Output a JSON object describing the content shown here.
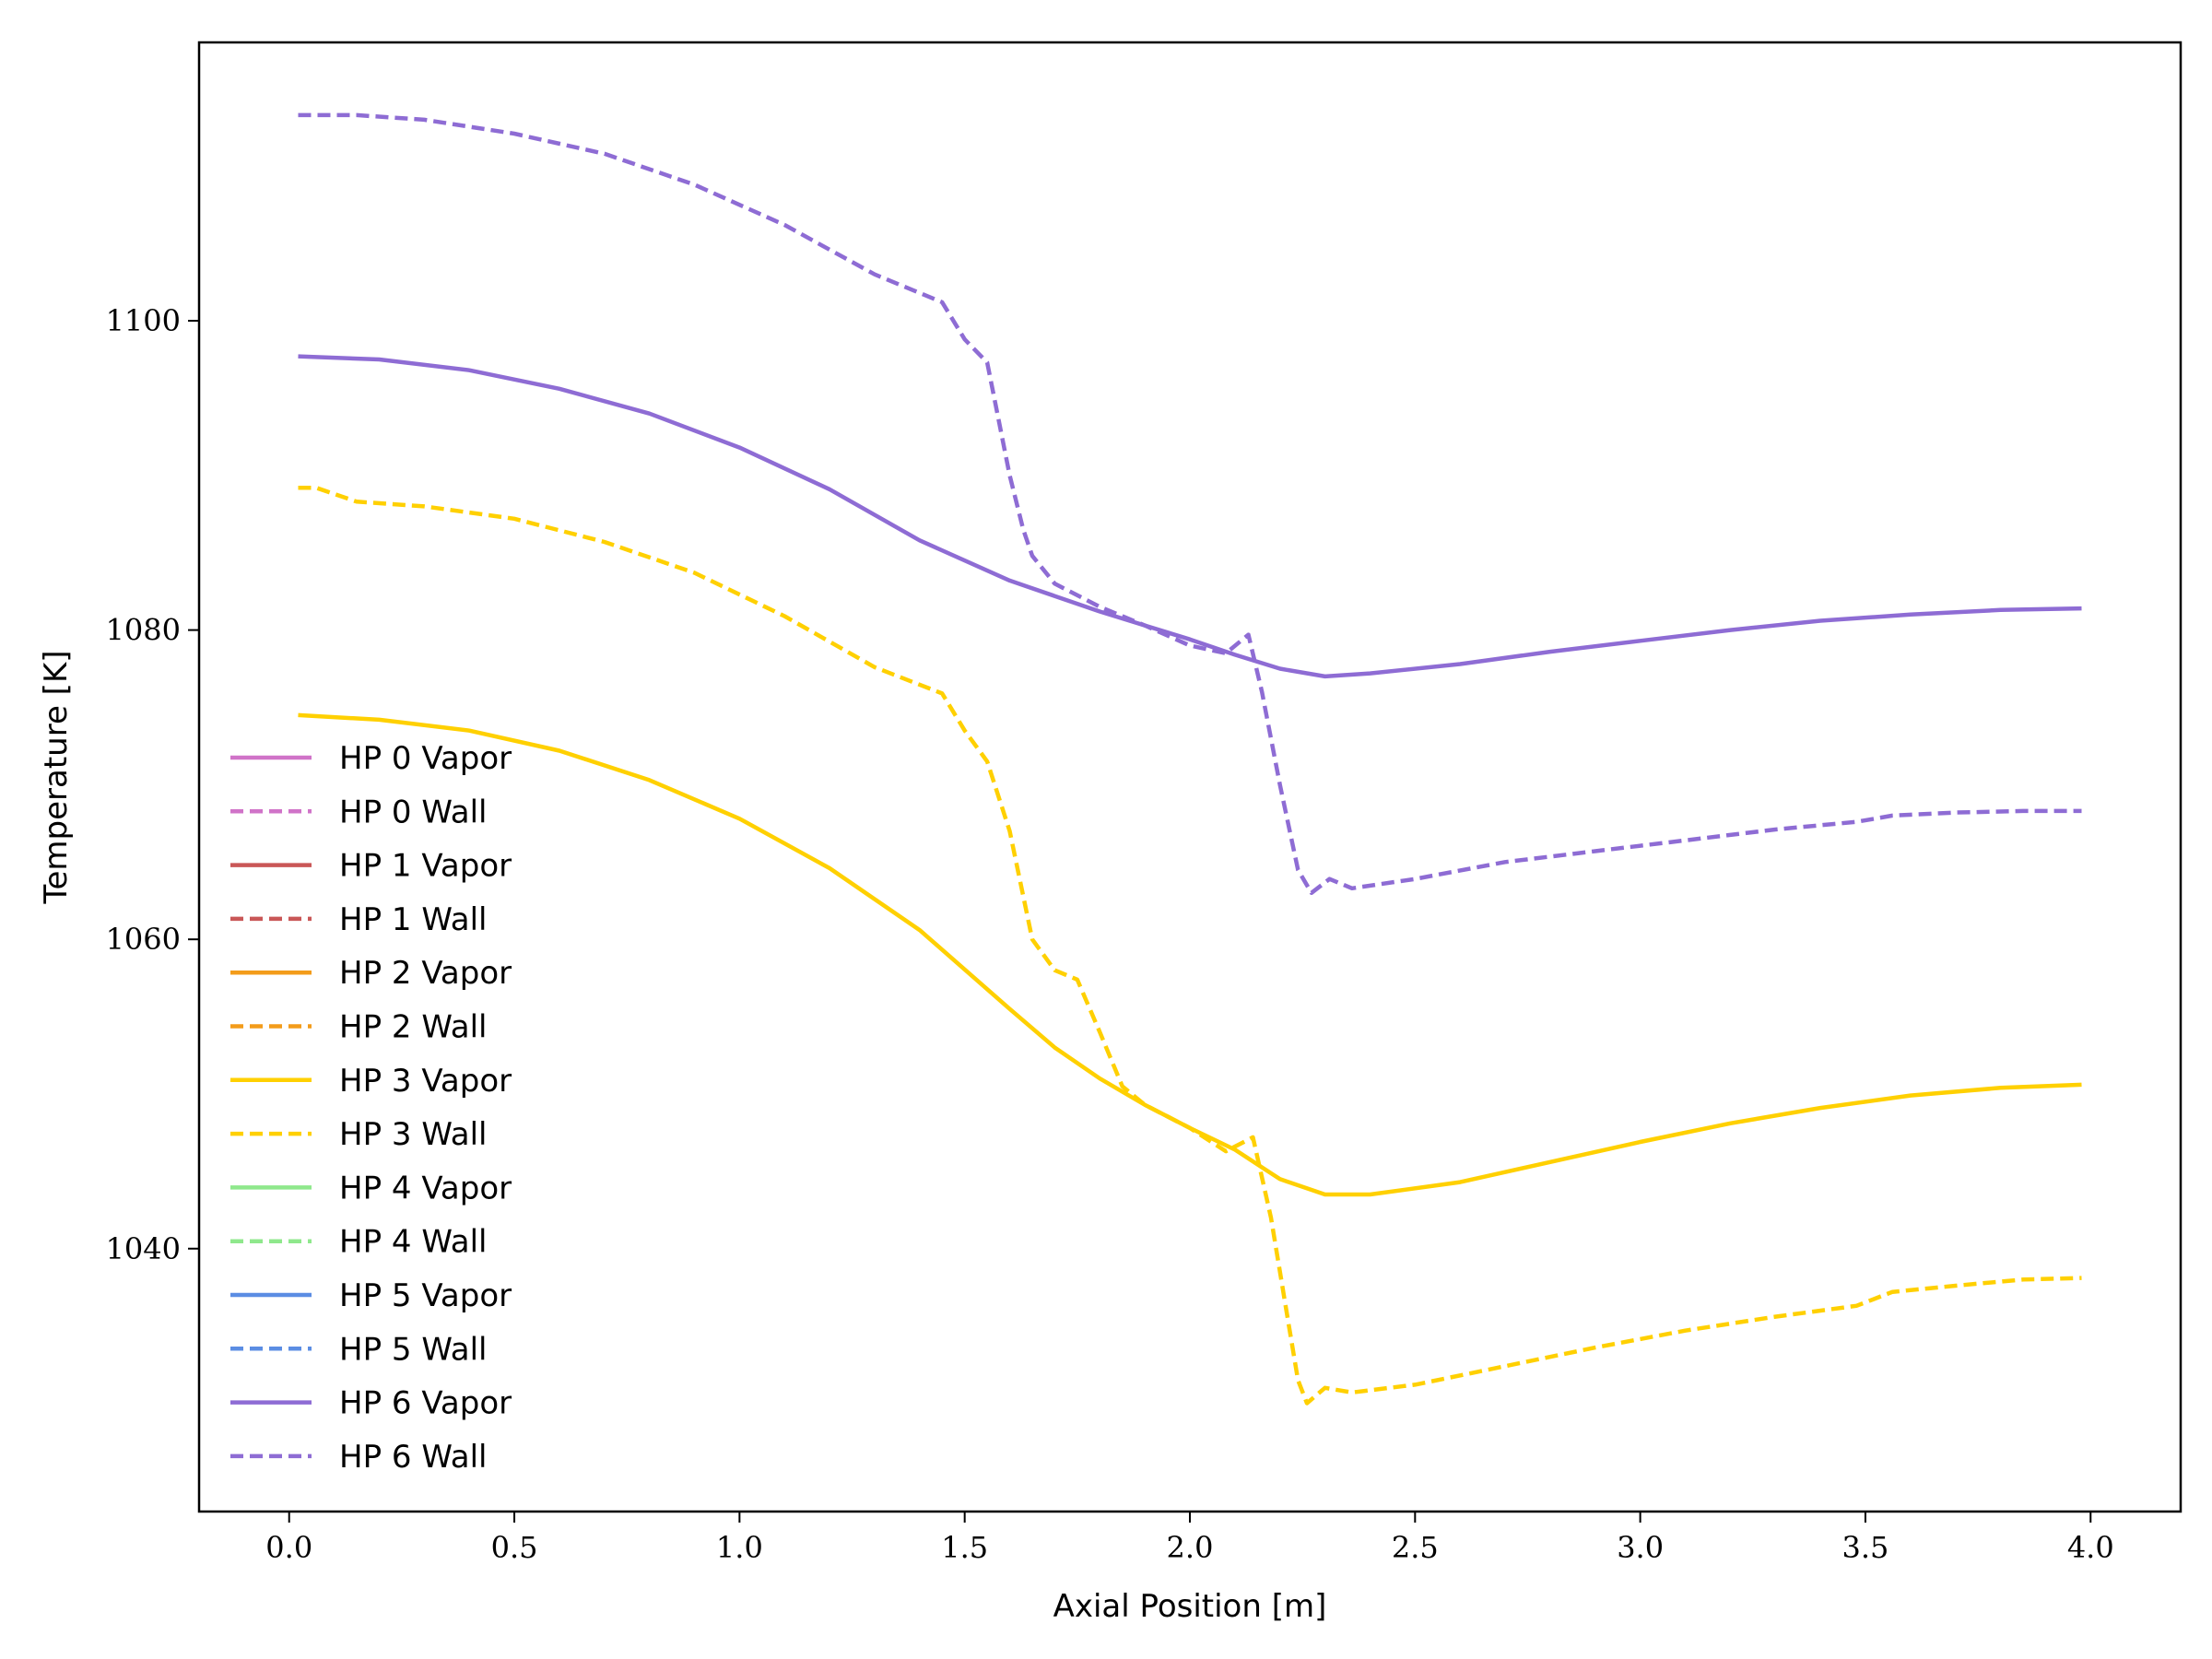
{
  "chart_data": {
    "type": "line",
    "title": "",
    "xlabel": "Axial Position [m]",
    "ylabel": "Temperature [K]",
    "xlim": [
      -0.2,
      4.2
    ],
    "ylim": [
      1023,
      1118
    ],
    "xticks": [
      0.0,
      0.5,
      1.0,
      1.5,
      2.0,
      2.5,
      3.0,
      3.5,
      4.0
    ],
    "xtick_labels": [
      "0.0",
      "0.5",
      "1.0",
      "1.5",
      "2.0",
      "2.5",
      "3.0",
      "3.5",
      "4.0"
    ],
    "yticks": [
      1040,
      1060,
      1080,
      1100
    ],
    "ytick_labels": [
      "1040",
      "1060",
      "1080",
      "1100"
    ],
    "grid": false,
    "legend_position": "center-left",
    "series": [
      {
        "name": "HP 0 Vapor",
        "color": "#d073c8",
        "style": "solid",
        "x": [],
        "y": []
      },
      {
        "name": "HP 0 Wall",
        "color": "#d073c8",
        "style": "dashed",
        "x": [],
        "y": []
      },
      {
        "name": "HP 1 Vapor",
        "color": "#c95757",
        "style": "solid",
        "x": [],
        "y": []
      },
      {
        "name": "HP 1 Wall",
        "color": "#c95757",
        "style": "dashed",
        "x": [],
        "y": []
      },
      {
        "name": "HP 2 Vapor",
        "color": "#f39c1a",
        "style": "solid",
        "x": [],
        "y": []
      },
      {
        "name": "HP 2 Wall",
        "color": "#f39c1a",
        "style": "dashed",
        "x": [],
        "y": []
      },
      {
        "name": "HP 3 Vapor",
        "color": "#ffd000",
        "style": "solid",
        "x": [
          0.02,
          0.2,
          0.4,
          0.6,
          0.8,
          1.0,
          1.2,
          1.4,
          1.6,
          1.7,
          1.8,
          1.9,
          2.0,
          2.1,
          2.2,
          2.3,
          2.4,
          2.6,
          2.8,
          3.0,
          3.2,
          3.4,
          3.6,
          3.8,
          3.98
        ],
        "y": [
          1074.5,
          1074.2,
          1073.5,
          1072.2,
          1070.3,
          1067.8,
          1064.6,
          1060.6,
          1055.5,
          1053.0,
          1051.0,
          1049.3,
          1047.8,
          1046.4,
          1044.5,
          1043.5,
          1043.5,
          1044.3,
          1045.6,
          1046.9,
          1048.1,
          1049.1,
          1049.9,
          1050.4,
          1050.6
        ]
      },
      {
        "name": "HP 3 Wall",
        "color": "#ffd000",
        "style": "dashed",
        "x": [
          0.02,
          0.06,
          0.15,
          0.3,
          0.5,
          0.7,
          0.9,
          1.1,
          1.3,
          1.45,
          1.5,
          1.55,
          1.6,
          1.65,
          1.7,
          1.75,
          1.8,
          1.85,
          1.9,
          2.0,
          2.08,
          2.14,
          2.18,
          2.22,
          2.24,
          2.26,
          2.3,
          2.36,
          2.5,
          2.7,
          2.9,
          3.1,
          3.3,
          3.48,
          3.56,
          3.7,
          3.85,
          3.98
        ],
        "y": [
          1089.2,
          1089.2,
          1088.3,
          1088.0,
          1087.2,
          1085.7,
          1083.7,
          1080.9,
          1077.6,
          1075.9,
          1073.5,
          1071.5,
          1067.0,
          1060.0,
          1058.0,
          1057.4,
          1054.0,
          1050.5,
          1049.3,
          1047.8,
          1046.3,
          1047.2,
          1042.0,
          1035.0,
          1031.5,
          1030.0,
          1031.0,
          1030.7,
          1031.2,
          1032.4,
          1033.6,
          1034.7,
          1035.6,
          1036.3,
          1037.2,
          1037.6,
          1038.0,
          1038.1
        ]
      },
      {
        "name": "HP 4 Vapor",
        "color": "#8fe88c",
        "style": "solid",
        "x": [],
        "y": []
      },
      {
        "name": "HP 4 Wall",
        "color": "#8fe88c",
        "style": "dashed",
        "x": [],
        "y": []
      },
      {
        "name": "HP 5 Vapor",
        "color": "#5b8de3",
        "style": "solid",
        "x": [],
        "y": []
      },
      {
        "name": "HP 5 Wall",
        "color": "#5b8de3",
        "style": "dashed",
        "x": [],
        "y": []
      },
      {
        "name": "HP 6 Vapor",
        "color": "#8e6cd4",
        "style": "solid",
        "x": [
          0.02,
          0.2,
          0.4,
          0.6,
          0.8,
          1.0,
          1.2,
          1.4,
          1.6,
          1.7,
          1.8,
          1.9,
          2.0,
          2.1,
          2.2,
          2.3,
          2.4,
          2.6,
          2.8,
          3.0,
          3.2,
          3.4,
          3.6,
          3.8,
          3.98
        ],
        "y": [
          1097.7,
          1097.5,
          1096.8,
          1095.6,
          1094.0,
          1091.8,
          1089.1,
          1085.8,
          1083.2,
          1082.2,
          1081.2,
          1080.3,
          1079.4,
          1078.4,
          1077.5,
          1077.0,
          1077.2,
          1077.8,
          1078.6,
          1079.3,
          1080.0,
          1080.6,
          1081.0,
          1081.3,
          1081.4
        ]
      },
      {
        "name": "HP 6 Wall",
        "color": "#8e6cd4",
        "style": "dashed",
        "x": [
          0.02,
          0.15,
          0.3,
          0.5,
          0.7,
          0.9,
          1.1,
          1.3,
          1.45,
          1.5,
          1.55,
          1.6,
          1.63,
          1.65,
          1.7,
          1.8,
          1.9,
          2.0,
          2.08,
          2.13,
          2.16,
          2.2,
          2.24,
          2.27,
          2.31,
          2.36,
          2.5,
          2.7,
          2.9,
          3.1,
          3.3,
          3.48,
          3.56,
          3.7,
          3.85,
          3.98
        ],
        "y": [
          1113.3,
          1113.3,
          1113.0,
          1112.1,
          1110.8,
          1108.8,
          1106.2,
          1103.0,
          1101.2,
          1098.8,
          1097.3,
          1090.0,
          1086.5,
          1084.8,
          1083.0,
          1081.5,
          1080.3,
          1079.0,
          1078.5,
          1079.7,
          1076.0,
          1070.0,
          1064.5,
          1063.0,
          1063.9,
          1063.3,
          1063.9,
          1065.0,
          1065.7,
          1066.4,
          1067.1,
          1067.6,
          1068.0,
          1068.2,
          1068.3,
          1068.3
        ]
      }
    ]
  }
}
